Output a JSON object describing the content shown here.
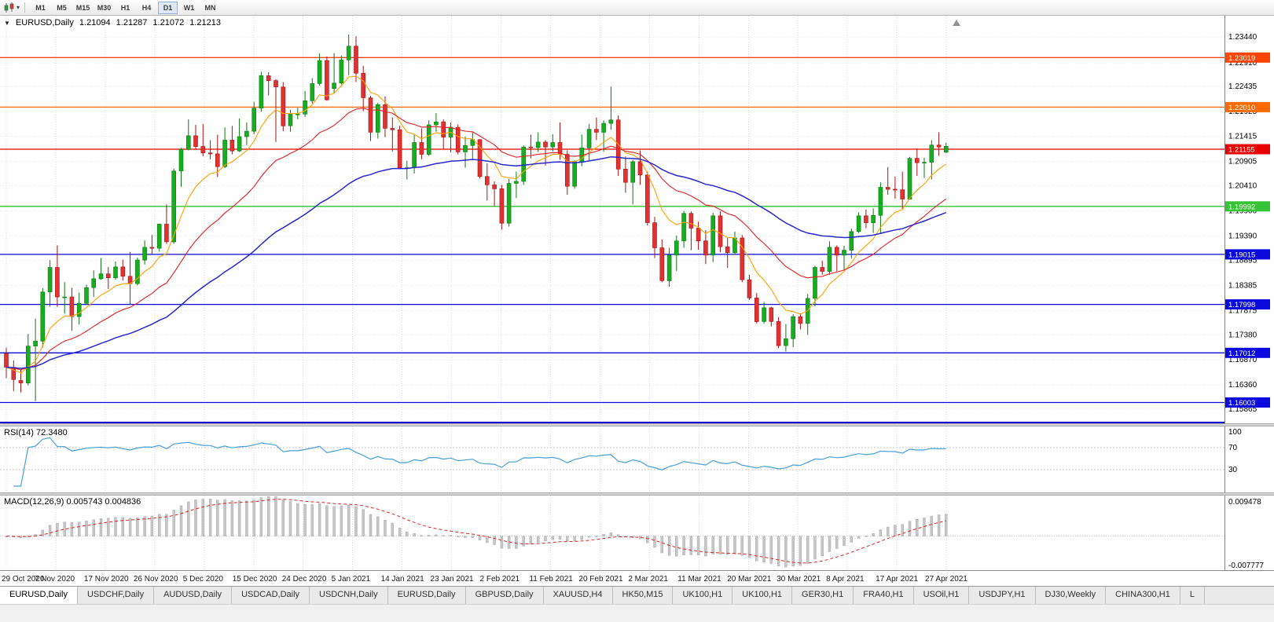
{
  "toolbar": {
    "timeframes": [
      "M1",
      "M5",
      "M15",
      "M30",
      "H1",
      "H4",
      "D1",
      "W1",
      "MN"
    ],
    "active_timeframe": "D1",
    "chart_menu_caret": "▾"
  },
  "chart": {
    "info": {
      "collapse_icon": "▼",
      "symbol": "EURUSD,Daily",
      "open": "1.21094",
      "high": "1.21287",
      "low": "1.21072",
      "close": "1.21213"
    },
    "price_axis_ticks": [
      "1.23440",
      "1.22910",
      "1.22435",
      "1.21925",
      "1.21415",
      "1.20905",
      "1.20410",
      "1.19900",
      "1.19390",
      "1.18895",
      "1.18385",
      "1.17875",
      "1.17380",
      "1.16870",
      "1.16360",
      "1.15865"
    ],
    "levels": [
      {
        "price": 1.23019,
        "label": "1.23019",
        "color": "#ff4500"
      },
      {
        "price": 1.2201,
        "label": "1.22010",
        "color": "#ff6a00"
      },
      {
        "price": 1.21155,
        "label": "1.21155",
        "color": "#e80000"
      },
      {
        "price": 1.19992,
        "label": "1.19992",
        "color": "#35c435"
      },
      {
        "price": 1.19015,
        "label": "1.19015",
        "color": "#0a0adf"
      },
      {
        "price": 1.17998,
        "label": "1.17998",
        "color": "#0a0adf"
      },
      {
        "price": 1.17012,
        "label": "1.17012",
        "color": "#0a0adf"
      },
      {
        "price": 1.16003,
        "label": "1.16003",
        "color": "#0a0adf"
      }
    ],
    "date_axis": [
      "29 Oct 2020",
      "7 Nov 2020",
      "17 Nov 2020",
      "26 Nov 2020",
      "5 Dec 2020",
      "15 Dec 2020",
      "24 Dec 2020",
      "5 Jan 2021",
      "14 Jan 2021",
      "23 Jan 2021",
      "2 Feb 2021",
      "11 Feb 2021",
      "20 Feb 2021",
      "2 Mar 2021",
      "11 Mar 2021",
      "20 Mar 2021",
      "30 Mar 2021",
      "8 Apr 2021",
      "17 Apr 2021",
      "27 Apr 2021"
    ]
  },
  "chart_data": {
    "type": "candlestick",
    "symbol": "EURUSD",
    "timeframe": "Daily",
    "y_range": [
      1.1558,
      1.2387
    ],
    "ohlc_order": "open,high,low,close",
    "ohlc": [
      [
        1.17,
        1.1712,
        1.165,
        1.1672
      ],
      [
        1.1672,
        1.1686,
        1.1623,
        1.1647
      ],
      [
        1.1645,
        1.1668,
        1.1621,
        1.164
      ],
      [
        1.164,
        1.174,
        1.1635,
        1.1715
      ],
      [
        1.1715,
        1.1771,
        1.1603,
        1.1725
      ],
      [
        1.1725,
        1.1833,
        1.1712,
        1.1825
      ],
      [
        1.1825,
        1.189,
        1.1795,
        1.1875
      ],
      [
        1.1875,
        1.192,
        1.1795,
        1.1815
      ],
      [
        1.1815,
        1.1845,
        1.1781,
        1.1815
      ],
      [
        1.1815,
        1.1834,
        1.1746,
        1.1775
      ],
      [
        1.1775,
        1.1824,
        1.1759,
        1.1802
      ],
      [
        1.1802,
        1.184,
        1.1799,
        1.1834
      ],
      [
        1.1834,
        1.1869,
        1.1815,
        1.1852
      ],
      [
        1.1852,
        1.1894,
        1.185,
        1.1862
      ],
      [
        1.1862,
        1.1876,
        1.1831,
        1.1854
      ],
      [
        1.1854,
        1.1887,
        1.185,
        1.1876
      ],
      [
        1.1876,
        1.1891,
        1.1848,
        1.1857
      ],
      [
        1.1857,
        1.1906,
        1.18,
        1.1842
      ],
      [
        1.1842,
        1.1895,
        1.1839,
        1.189
      ],
      [
        1.189,
        1.193,
        1.1881,
        1.1916
      ],
      [
        1.1916,
        1.1941,
        1.1902,
        1.1914
      ],
      [
        1.1914,
        1.1964,
        1.1907,
        1.1963
      ],
      [
        1.1963,
        1.2003,
        1.1923,
        1.1927
      ],
      [
        1.1927,
        1.2076,
        1.1923,
        1.2071
      ],
      [
        1.2071,
        1.2118,
        1.2039,
        1.2115
      ],
      [
        1.2115,
        1.2176,
        1.2113,
        1.2143
      ],
      [
        1.2143,
        1.2165,
        1.2115,
        1.2121
      ],
      [
        1.2121,
        1.2167,
        1.2101,
        1.2108
      ],
      [
        1.2108,
        1.2134,
        1.2095,
        1.2106
      ],
      [
        1.2106,
        1.2145,
        1.2059,
        1.208
      ],
      [
        1.208,
        1.216,
        1.2077,
        1.2134
      ],
      [
        1.2134,
        1.2163,
        1.2105,
        1.2112
      ],
      [
        1.2112,
        1.2178,
        1.211,
        1.2141
      ],
      [
        1.2141,
        1.217,
        1.2124,
        1.2152
      ],
      [
        1.2152,
        1.2212,
        1.2146,
        1.2199
      ],
      [
        1.2199,
        1.2273,
        1.2192,
        1.2265
      ],
      [
        1.2265,
        1.2272,
        1.2225,
        1.2255
      ],
      [
        1.2255,
        1.2258,
        1.213,
        1.2242
      ],
      [
        1.2242,
        1.2252,
        1.2152,
        1.2163
      ],
      [
        1.2163,
        1.2196,
        1.2151,
        1.2187
      ],
      [
        1.2187,
        1.22,
        1.2176,
        1.2187
      ],
      [
        1.2187,
        1.2234,
        1.2181,
        1.2214
      ],
      [
        1.2214,
        1.226,
        1.2208,
        1.2249
      ],
      [
        1.2249,
        1.231,
        1.2245,
        1.2296
      ],
      [
        1.2296,
        1.2304,
        1.2214,
        1.2216
      ],
      [
        1.2239,
        1.2311,
        1.2228,
        1.225
      ],
      [
        1.225,
        1.2306,
        1.2247,
        1.2297
      ],
      [
        1.2297,
        1.2349,
        1.2266,
        1.2325
      ],
      [
        1.2325,
        1.2345,
        1.2252,
        1.227
      ],
      [
        1.227,
        1.2285,
        1.2193,
        1.222
      ],
      [
        1.222,
        1.2224,
        1.2132,
        1.215
      ],
      [
        1.215,
        1.221,
        1.2137,
        1.2206
      ],
      [
        1.2206,
        1.2223,
        1.214,
        1.2158
      ],
      [
        1.2158,
        1.218,
        1.2111,
        1.2155
      ],
      [
        1.2155,
        1.2163,
        1.2075,
        1.2077
      ],
      [
        1.2077,
        1.2092,
        1.2054,
        1.2078
      ],
      [
        1.2078,
        1.2145,
        1.2066,
        1.2129
      ],
      [
        1.2129,
        1.2158,
        1.2095,
        1.2105
      ],
      [
        1.2105,
        1.2174,
        1.2102,
        1.2165
      ],
      [
        1.2165,
        1.2189,
        1.2151,
        1.2171
      ],
      [
        1.2171,
        1.2176,
        1.2116,
        1.214
      ],
      [
        1.214,
        1.217,
        1.2109,
        1.216
      ],
      [
        1.216,
        1.2166,
        1.2105,
        1.211
      ],
      [
        1.211,
        1.2141,
        1.2078,
        1.2123
      ],
      [
        1.2123,
        1.2152,
        1.2093,
        1.2135
      ],
      [
        1.2135,
        1.2136,
        1.2056,
        1.206
      ],
      [
        1.206,
        1.2087,
        1.2011,
        1.2043
      ],
      [
        1.2043,
        1.205,
        1.1999,
        1.2035
      ],
      [
        1.2035,
        1.2043,
        1.1952,
        1.1965
      ],
      [
        1.1965,
        1.2055,
        1.1958,
        1.2046
      ],
      [
        1.2046,
        1.207,
        1.2016,
        1.205
      ],
      [
        1.205,
        1.2123,
        1.2043,
        1.212
      ],
      [
        1.212,
        1.2145,
        1.2097,
        1.2119
      ],
      [
        1.2119,
        1.215,
        1.211,
        1.213
      ],
      [
        1.213,
        1.2134,
        1.2082,
        1.212
      ],
      [
        1.212,
        1.2146,
        1.2111,
        1.2129
      ],
      [
        1.2129,
        1.217,
        1.2094,
        1.2105
      ],
      [
        1.2105,
        1.2113,
        1.2023,
        1.204
      ],
      [
        1.204,
        1.2093,
        1.2035,
        1.209
      ],
      [
        1.209,
        1.2145,
        1.2081,
        1.2118
      ],
      [
        1.2118,
        1.2167,
        1.2093,
        1.2156
      ],
      [
        1.2156,
        1.218,
        1.2134,
        1.215
      ],
      [
        1.215,
        1.2174,
        1.211,
        1.2168
      ],
      [
        1.2168,
        1.2243,
        1.2155,
        1.2175
      ],
      [
        1.2175,
        1.2184,
        1.2061,
        1.2075
      ],
      [
        1.2075,
        1.2101,
        1.2027,
        1.2048
      ],
      [
        1.2048,
        1.2094,
        1.2003,
        1.209
      ],
      [
        1.209,
        1.2113,
        1.2043,
        1.2063
      ],
      [
        1.2063,
        1.207,
        1.196,
        1.1966
      ],
      [
        1.1966,
        1.1978,
        1.1894,
        1.1915
      ],
      [
        1.1915,
        1.1932,
        1.1845,
        1.1848
      ],
      [
        1.1848,
        1.1915,
        1.1836,
        1.19
      ],
      [
        1.19,
        1.194,
        1.1868,
        1.1929
      ],
      [
        1.1929,
        1.199,
        1.1915,
        1.1985
      ],
      [
        1.1985,
        1.1989,
        1.191,
        1.1955
      ],
      [
        1.1955,
        1.1968,
        1.1911,
        1.1929
      ],
      [
        1.1929,
        1.1951,
        1.1882,
        1.19
      ],
      [
        1.19,
        1.1986,
        1.1886,
        1.198
      ],
      [
        1.198,
        1.1989,
        1.1906,
        1.1917
      ],
      [
        1.1917,
        1.1936,
        1.1874,
        1.1905
      ],
      [
        1.1905,
        1.1948,
        1.1901,
        1.1935
      ],
      [
        1.1935,
        1.1941,
        1.1845,
        1.185
      ],
      [
        1.185,
        1.186,
        1.1809,
        1.1813
      ],
      [
        1.1813,
        1.1823,
        1.1761,
        1.1765
      ],
      [
        1.1765,
        1.1805,
        1.1761,
        1.1793
      ],
      [
        1.1793,
        1.1795,
        1.1755,
        1.1765
      ],
      [
        1.1765,
        1.1774,
        1.1711,
        1.1716
      ],
      [
        1.1716,
        1.176,
        1.1704,
        1.173
      ],
      [
        1.173,
        1.178,
        1.1713,
        1.1775
      ],
      [
        1.1775,
        1.1782,
        1.1749,
        1.1761
      ],
      [
        1.1761,
        1.1821,
        1.1738,
        1.1812
      ],
      [
        1.1812,
        1.1878,
        1.1796,
        1.1875
      ],
      [
        1.1875,
        1.1889,
        1.186,
        1.1867
      ],
      [
        1.1867,
        1.1928,
        1.186,
        1.1916
      ],
      [
        1.1916,
        1.192,
        1.1867,
        1.19
      ],
      [
        1.19,
        1.1919,
        1.187,
        1.191
      ],
      [
        1.191,
        1.1954,
        1.1893,
        1.1948
      ],
      [
        1.1948,
        1.1987,
        1.1945,
        1.198
      ],
      [
        1.198,
        1.1993,
        1.1955,
        1.1966
      ],
      [
        1.1966,
        1.1995,
        1.1945,
        1.1981
      ],
      [
        1.1981,
        1.2048,
        1.1943,
        1.2038
      ],
      [
        1.2038,
        1.2079,
        1.2023,
        1.2034
      ],
      [
        1.2034,
        1.206,
        1.2015,
        1.2033
      ],
      [
        1.2033,
        1.207,
        1.1993,
        1.2014
      ],
      [
        1.2014,
        1.21,
        1.2013,
        1.2097
      ],
      [
        1.2097,
        1.2117,
        1.2061,
        1.2088
      ],
      [
        1.2088,
        1.2098,
        1.2057,
        1.2089
      ],
      [
        1.2089,
        1.2134,
        1.2054,
        1.2124
      ],
      [
        1.2124,
        1.215,
        1.2102,
        1.212
      ],
      [
        1.21094,
        1.21287,
        1.21072,
        1.21213
      ]
    ],
    "overlays": [
      {
        "name": "ma-fast",
        "type": "ema",
        "period": 8,
        "color": "#ffa000"
      },
      {
        "name": "ma-mid",
        "type": "ema",
        "period": 21,
        "color": "#e52020"
      },
      {
        "name": "ma-slow",
        "type": "ema",
        "period": 50,
        "color": "#2828cc"
      }
    ]
  },
  "rsi": {
    "label": "RSI(14) 72.3480",
    "period": 14,
    "last_value": "72.3480",
    "axis_ticks": [
      "100",
      "70",
      "30"
    ],
    "upper_level": 70,
    "lower_level": 30,
    "line_color": "#4a9fd8"
  },
  "macd": {
    "label": "MACD(12,26,9) 0.005743 0.004836",
    "main_value": "0.005743",
    "signal_value": "0.004836",
    "axis_max": "0.009478",
    "axis_min": "-0.007777",
    "histogram_color": "#c6c6c6",
    "signal_color": "#dd2222"
  },
  "tabs": [
    {
      "label": "EURUSD,Daily",
      "active": true
    },
    {
      "label": "USDCHF,Daily",
      "active": false
    },
    {
      "label": "AUDUSD,Daily",
      "active": false
    },
    {
      "label": "USDCAD,Daily",
      "active": false
    },
    {
      "label": "USDCNH,Daily",
      "active": false
    },
    {
      "label": "EURUSD,Daily",
      "active": false
    },
    {
      "label": "GBPUSD,Daily",
      "active": false
    },
    {
      "label": "XAUUSD,H4",
      "active": false
    },
    {
      "label": "HK50,M15",
      "active": false
    },
    {
      "label": "UK100,H1",
      "active": false
    },
    {
      "label": "UK100,H1",
      "active": false
    },
    {
      "label": "GER30,H1",
      "active": false
    },
    {
      "label": "FRA40,H1",
      "active": false
    },
    {
      "label": "USOil,H1",
      "active": false
    },
    {
      "label": "USDJPY,H1",
      "active": false
    },
    {
      "label": "DJ30,Weekly",
      "active": false
    },
    {
      "label": "CHINA300,H1",
      "active": false
    },
    {
      "label": "L",
      "active": false
    }
  ]
}
